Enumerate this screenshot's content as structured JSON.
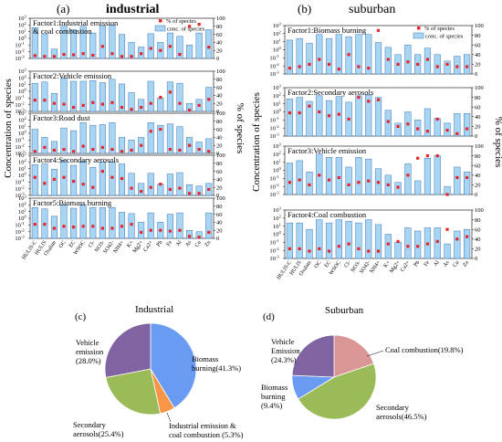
{
  "figure": {
    "panels": [
      {
        "letter": "(a)",
        "title": "industrial"
      },
      {
        "letter": "(b)",
        "title": "suburban"
      },
      {
        "letter": "(c)",
        "title": "Industrial"
      },
      {
        "letter": "(d)",
        "title": "Suburban"
      }
    ],
    "axis_left": "Concentration of species",
    "axis_right": "% of species",
    "legend": {
      "marker_label": "% of species",
      "bar_label": "conc. of species"
    },
    "colors": {
      "bar_fill": "#a9d5f5",
      "bar_stroke": "#3c78b4",
      "marker": "#e8262a",
      "pie_blue": "#6a9bf2",
      "pie_green": "#9bbb59",
      "pie_orange": "#f79646",
      "pie_purple": "#8064a2",
      "pie_pink": "#d99694"
    }
  },
  "chart_data": [
    {
      "type": "bar",
      "panel": "(a)",
      "y_ticks_left": [
        "10^3",
        "10^2",
        "10^1",
        "10^0",
        "10^-1",
        "10^-2",
        "10^-3"
      ],
      "y_ticks_right": [
        "0",
        "20",
        "40",
        "60",
        "80",
        "100"
      ],
      "categories": [
        "HULIS-C",
        "HULIS",
        "Oxalate",
        "OC",
        "EC",
        "WSOC",
        "Cl-",
        "NO3-",
        "SO42-",
        "NH4+",
        "K+",
        "Mg2+",
        "Ca2+",
        "Pb",
        "Fe",
        "Al",
        "As",
        "Cu",
        "Zn"
      ],
      "factors": [
        {
          "name": "Factor1:Industrial emission & coal combustion",
          "log_conc": [
            1.6,
            0.6,
            -1.6,
            1.8,
            1.3,
            1.8,
            0.8,
            1.9,
            2.0,
            0.6,
            -0.6,
            -1.3,
            0.7,
            -0.6,
            0.8,
            0.3,
            -1.0,
            0.8,
            1.3
          ],
          "pct": [
            7,
            5,
            5,
            10,
            9,
            12,
            8,
            30,
            12,
            5,
            5,
            12,
            25,
            20,
            30,
            10,
            80,
            85,
            28
          ]
        },
        {
          "name": "Factor2:Vehicle emission",
          "log_conc": [
            1.2,
            1.4,
            -0.3,
            2.0,
            1.5,
            1.5,
            1.6,
            1.3,
            1.8,
            1.1,
            -0.2,
            -1.2,
            1.5,
            -1.0,
            1.4,
            1.2,
            -1.8,
            -1.2,
            0.6
          ],
          "pct": [
            28,
            28,
            20,
            18,
            10,
            15,
            22,
            18,
            22,
            10,
            5,
            10,
            20,
            35,
            48,
            20,
            3,
            15,
            30
          ]
        },
        {
          "name": "Factor3:Road dust",
          "log_conc": [
            0.6,
            -0.6,
            -1.2,
            0.8,
            0.4,
            1.6,
            1.2,
            1.3,
            1.6,
            -0.6,
            -1.0,
            -0.6,
            1.6,
            1.2,
            1.4,
            1.0,
            -0.6,
            -1.3,
            -0.8
          ],
          "pct": [
            5,
            15,
            8,
            10,
            5,
            18,
            10,
            15,
            10,
            5,
            8,
            20,
            55,
            60,
            10,
            8,
            20,
            10,
            5
          ]
        },
        {
          "name": "Factor4:Secondary aerosols",
          "log_conc": [
            1.6,
            1.7,
            0.9,
            2.2,
            1.5,
            2.1,
            1.2,
            2.0,
            2.0,
            1.7,
            0.3,
            -1.2,
            0.3,
            -1.3,
            0.2,
            0.4,
            -1.4,
            -1.6,
            -1.2
          ],
          "pct": [
            45,
            30,
            40,
            45,
            35,
            28,
            20,
            60,
            45,
            42,
            18,
            10,
            20,
            28,
            15,
            18,
            5,
            5,
            15
          ]
        },
        {
          "name": "Factor5:Biomass burning",
          "log_conc": [
            1.6,
            1.4,
            0.3,
            2.0,
            1.5,
            2.0,
            1.6,
            1.6,
            1.6,
            0.9,
            0.7,
            -0.6,
            0.8,
            -0.6,
            0.6,
            0.8,
            -1.8,
            -2.0,
            0.8
          ],
          "pct": [
            35,
            35,
            25,
            30,
            28,
            30,
            30,
            25,
            25,
            30,
            35,
            15,
            20,
            20,
            18,
            20,
            5,
            3,
            15
          ]
        }
      ]
    },
    {
      "type": "bar",
      "panel": "(b)",
      "y_ticks_left": [
        "10^3",
        "10^2",
        "10^1",
        "10^0",
        "10^-1",
        "10^-2",
        "10^-3"
      ],
      "y_ticks_right": [
        "0",
        "20",
        "40",
        "60",
        "80",
        "100"
      ],
      "categories": [
        "HULIS-C",
        "HULIS",
        "Oxalate",
        "OC",
        "EC",
        "WSOC",
        "Cl-",
        "NO3-",
        "SO42-",
        "NH4+",
        "K+",
        "Mg2+",
        "Ca2+",
        "Pb",
        "Fe",
        "Al",
        "As",
        "Cu",
        "Zn"
      ],
      "factors": [
        {
          "name": "Factor1:Biomass burning",
          "log_conc": [
            1.2,
            1.4,
            0.8,
            1.9,
            1.4,
            1.9,
            1.6,
            1.9,
            1.9,
            0.9,
            0.3,
            -0.6,
            0.6,
            -0.6,
            0.2,
            -0.6,
            -1.4,
            -0.8,
            -0.6
          ],
          "pct": [
            12,
            15,
            20,
            30,
            20,
            10,
            40,
            15,
            12,
            90,
            30,
            20,
            25,
            20,
            30,
            15,
            20,
            15,
            15
          ]
        },
        {
          "name": "Factor2:Secondary aerosols",
          "log_conc": [
            1.6,
            1.8,
            1.3,
            2.0,
            1.4,
            1.9,
            1.2,
            2.0,
            2.1,
            1.8,
            0.2,
            -1.4,
            0.0,
            -1.0,
            0.4,
            -0.8,
            -1.4,
            -0.2,
            -0.2
          ],
          "pct": [
            48,
            48,
            62,
            50,
            42,
            45,
            35,
            80,
            72,
            75,
            30,
            20,
            25,
            15,
            10,
            35,
            12,
            5,
            15
          ]
        },
        {
          "name": "Factor3:Vehicle emission",
          "log_conc": [
            0.9,
            1.2,
            -0.2,
            2.0,
            1.6,
            1.6,
            0.4,
            1.6,
            1.4,
            0.2,
            -0.6,
            -1.5,
            0.8,
            -1.3,
            1.5,
            1.8,
            -2.0,
            0.4,
            -0.2
          ],
          "pct": [
            25,
            30,
            20,
            40,
            30,
            35,
            20,
            25,
            28,
            25,
            20,
            15,
            40,
            75,
            80,
            80,
            0,
            35,
            35
          ]
        },
        {
          "name": "Factor4:Coal combustion",
          "log_conc": [
            1.4,
            1.4,
            0.6,
            1.8,
            1.4,
            1.8,
            1.6,
            1.4,
            1.8,
            1.2,
            0.0,
            -1.0,
            0.8,
            0.4,
            0.8,
            0.8,
            -1.2,
            0.4,
            0.6
          ],
          "pct": [
            20,
            20,
            15,
            20,
            15,
            25,
            30,
            20,
            15,
            15,
            30,
            35,
            25,
            25,
            30,
            35,
            60,
            40,
            45
          ]
        }
      ]
    },
    {
      "type": "pie",
      "panel": "(c)",
      "slices": [
        {
          "label": "Biomass burning(41.3%)",
          "value": 41.3,
          "color": "#6a9bf2"
        },
        {
          "label": "Industrial emission & coal combustion (5.3%)",
          "value": 5.3,
          "color": "#f79646"
        },
        {
          "label": "Secondary aerosols(25.4%)",
          "value": 25.4,
          "color": "#9bbb59"
        },
        {
          "label": "Vehicle emission (28.0%)",
          "value": 28.0,
          "color": "#8064a2"
        }
      ]
    },
    {
      "type": "pie",
      "panel": "(d)",
      "slices": [
        {
          "label": "Coal combustion(19.8%)",
          "value": 19.8,
          "color": "#d99694"
        },
        {
          "label": "Secondary aerosols(46.5%)",
          "value": 46.5,
          "color": "#9bbb59"
        },
        {
          "label": "Biomass burning (9.4%)",
          "value": 9.4,
          "color": "#6a9bf2"
        },
        {
          "label": "Vehicle Emission (24.3%)",
          "value": 24.3,
          "color": "#8064a2"
        }
      ]
    }
  ]
}
